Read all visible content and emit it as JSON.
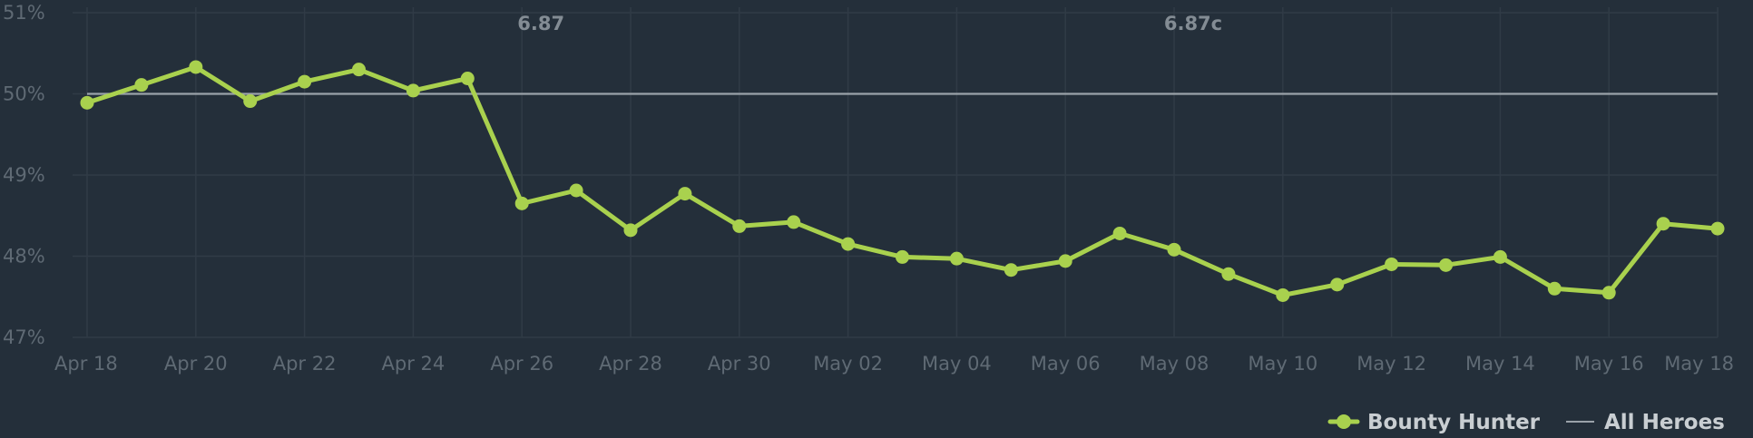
{
  "colors": {
    "background": "#242f3a",
    "grid": "#303b46",
    "series_hero": "#a9d14e",
    "series_all": "#9aa2a9",
    "tick_text": "#5f6a74",
    "annotation_text": "#838c94",
    "legend_text": "#c9ced2"
  },
  "chart_data": {
    "type": "line",
    "x": [
      "Apr 18",
      "Apr 19",
      "Apr 20",
      "Apr 21",
      "Apr 22",
      "Apr 23",
      "Apr 24",
      "Apr 25",
      "Apr 26",
      "Apr 27",
      "Apr 28",
      "Apr 29",
      "Apr 30",
      "May 01",
      "May 02",
      "May 03",
      "May 04",
      "May 05",
      "May 06",
      "May 07",
      "May 08",
      "May 09",
      "May 10",
      "May 11",
      "May 12",
      "May 13",
      "May 14",
      "May 15",
      "May 16",
      "May 17",
      "May 18"
    ],
    "x_tick_labels": [
      "Apr 18",
      "Apr 20",
      "Apr 22",
      "Apr 24",
      "Apr 26",
      "Apr 28",
      "Apr 30",
      "May 02",
      "May 04",
      "May 06",
      "May 08",
      "May 10",
      "May 12",
      "May 14",
      "May 16",
      "May 18"
    ],
    "y_tick_labels": [
      "51%",
      "50%",
      "49%",
      "48%",
      "47%"
    ],
    "y_ticks": [
      51,
      50,
      49,
      48,
      47
    ],
    "ylim": [
      47,
      51
    ],
    "grid": true,
    "legend_position": "bottom-right",
    "series": [
      {
        "name": "Bounty Hunter",
        "color": "#a9d14e",
        "markers": true,
        "values": [
          49.89,
          50.11,
          50.33,
          49.91,
          50.15,
          50.3,
          50.04,
          50.19,
          48.65,
          48.81,
          48.32,
          48.77,
          48.37,
          48.42,
          48.15,
          47.99,
          47.97,
          47.83,
          47.94,
          48.28,
          48.08,
          47.78,
          47.52,
          47.65,
          47.9,
          47.89,
          47.99,
          47.6,
          47.55,
          48.4,
          48.34
        ]
      },
      {
        "name": "All Heroes",
        "color": "#9aa2a9",
        "markers": false,
        "values": [
          50.0,
          50.0,
          50.0,
          50.0,
          50.0,
          50.0,
          50.0,
          50.0,
          50.0,
          50.0,
          50.0,
          50.0,
          50.0,
          50.0,
          50.0,
          50.0,
          50.0,
          50.0,
          50.0,
          50.0,
          50.0,
          50.0,
          50.0,
          50.0,
          50.0,
          50.0,
          50.0,
          50.0,
          50.0,
          50.0,
          50.0
        ]
      }
    ],
    "annotations": [
      {
        "label": "6.87",
        "x": "Apr 26"
      },
      {
        "label": "6.87c",
        "x": "May 08"
      }
    ]
  }
}
